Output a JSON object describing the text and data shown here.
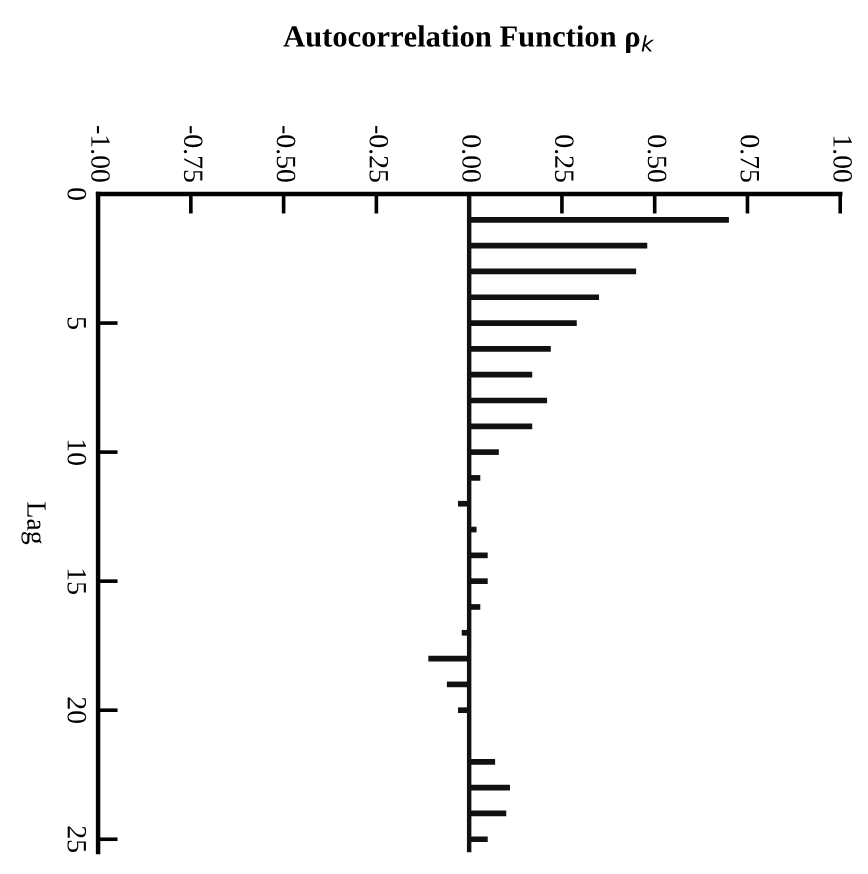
{
  "chart_data": {
    "type": "bar",
    "orientation": "horizontal",
    "title": "Autocorrelation Function ρ$_{k}$",
    "ylabel": "Lag",
    "x": [
      1,
      2,
      3,
      4,
      5,
      6,
      7,
      8,
      9,
      10,
      11,
      12,
      13,
      14,
      15,
      16,
      17,
      18,
      19,
      20,
      21,
      22,
      23,
      24,
      25
    ],
    "values": [
      0.7,
      0.48,
      0.45,
      0.35,
      0.29,
      0.22,
      0.17,
      0.21,
      0.17,
      0.08,
      0.03,
      -0.03,
      0.02,
      0.05,
      0.05,
      0.03,
      -0.02,
      -0.11,
      -0.06,
      -0.03,
      0,
      0.07,
      0.11,
      0.1,
      0.05
    ],
    "color": "#111111",
    "xlim": [
      -1,
      1
    ],
    "xticks": [
      {
        "value": -1,
        "label": "-1.00"
      },
      {
        "value": -0.75,
        "label": "-0.75"
      },
      {
        "value": -0.5,
        "label": "-0.50"
      },
      {
        "value": -0.25,
        "label": "-0.25"
      },
      {
        "value": 0,
        "label": "0.00"
      },
      {
        "value": 0.25,
        "label": "0.25"
      },
      {
        "value": 0.5,
        "label": "0.50"
      },
      {
        "value": 0.75,
        "label": "0.75"
      },
      {
        "value": 1,
        "label": "1.00"
      }
    ],
    "ylim": [
      25.5,
      0
    ],
    "yticks": [
      0,
      5,
      10,
      15,
      20,
      25
    ],
    "ref_lines": [
      {
        "axis": "x",
        "value": 0,
        "color": "#111111"
      }
    ],
    "grid": false,
    "legend": false
  }
}
